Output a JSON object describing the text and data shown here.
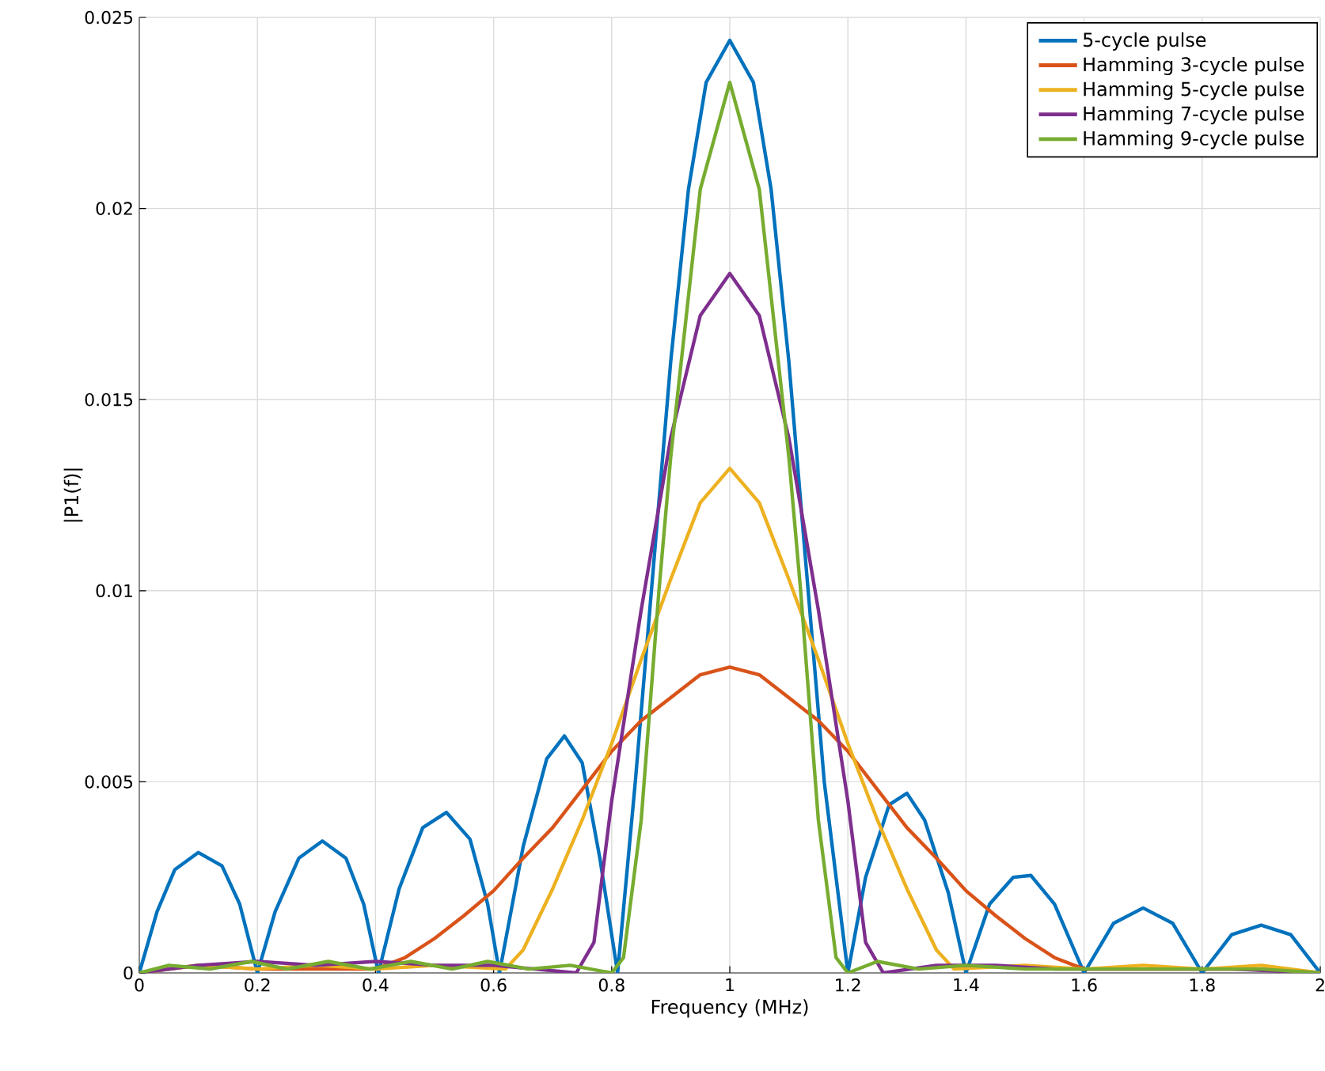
{
  "chart_data": {
    "type": "line",
    "xlabel": "Frequency (MHz)",
    "ylabel": "|P1(f)|",
    "xlim": [
      0,
      2
    ],
    "ylim": [
      0,
      0.025
    ],
    "xticks": [
      0,
      0.2,
      0.4,
      0.6,
      0.8,
      1,
      1.2,
      1.4,
      1.6,
      1.8,
      2
    ],
    "yticks": [
      0,
      0.005,
      0.01,
      0.015,
      0.02,
      0.025
    ],
    "grid": true,
    "legend": "top right",
    "marker": "none",
    "line_style": "solid",
    "series": [
      {
        "name": "5-cycle pulse",
        "color": "#0072bd",
        "x": [
          0,
          0.03,
          0.06,
          0.1,
          0.14,
          0.17,
          0.2,
          0.23,
          0.27,
          0.31,
          0.35,
          0.38,
          0.405,
          0.44,
          0.48,
          0.52,
          0.56,
          0.59,
          0.61,
          0.65,
          0.69,
          0.72,
          0.75,
          0.78,
          0.81,
          0.84,
          0.87,
          0.9,
          0.93,
          0.96,
          1,
          1.04,
          1.07,
          1.1,
          1.13,
          1.16,
          1.2,
          1.23,
          1.27,
          1.3,
          1.33,
          1.37,
          1.4,
          1.44,
          1.48,
          1.51,
          1.55,
          1.6,
          1.65,
          1.7,
          1.75,
          1.8,
          1.85,
          1.9,
          1.95,
          2
        ],
        "values": [
          0,
          0.0016,
          0.0027,
          0.00315,
          0.0028,
          0.0018,
          0,
          0.0016,
          0.003,
          0.00345,
          0.003,
          0.0018,
          0,
          0.0022,
          0.0038,
          0.0042,
          0.0035,
          0.0018,
          0,
          0.0033,
          0.0056,
          0.0062,
          0.0055,
          0.003,
          0,
          0.005,
          0.0105,
          0.016,
          0.0205,
          0.0233,
          0.0244,
          0.0233,
          0.0205,
          0.016,
          0.0105,
          0.005,
          0,
          0.0025,
          0.0044,
          0.0047,
          0.004,
          0.0021,
          0,
          0.0018,
          0.0025,
          0.00255,
          0.0018,
          0,
          0.0013,
          0.0017,
          0.0013,
          0,
          0.001,
          0.00125,
          0.001,
          0
        ]
      },
      {
        "name": "Hamming 3-cycle pulse",
        "color": "#d95319",
        "x": [
          0,
          0.1,
          0.2,
          0.3,
          0.4,
          0.45,
          0.5,
          0.55,
          0.6,
          0.65,
          0.7,
          0.75,
          0.8,
          0.85,
          0.9,
          0.95,
          1,
          1.05,
          1.1,
          1.15,
          1.2,
          1.25,
          1.3,
          1.35,
          1.4,
          1.45,
          1.5,
          1.55,
          1.6,
          1.7,
          1.8,
          1.9,
          2
        ],
        "values": [
          0,
          0.0002,
          0.0001,
          0.0001,
          0.0001,
          0.0004,
          0.0009,
          0.0015,
          0.00215,
          0.003,
          0.0038,
          0.0048,
          0.0058,
          0.0066,
          0.0072,
          0.0078,
          0.008,
          0.0078,
          0.0072,
          0.0066,
          0.0058,
          0.0048,
          0.0038,
          0.003,
          0.00215,
          0.0015,
          0.0009,
          0.0004,
          0.0001,
          0.0001,
          0.0001,
          0.0001,
          0
        ]
      },
      {
        "name": "Hamming 5-cycle pulse",
        "color": "#edb120",
        "x": [
          0,
          0.1,
          0.2,
          0.3,
          0.4,
          0.5,
          0.62,
          0.65,
          0.7,
          0.75,
          0.8,
          0.85,
          0.9,
          0.95,
          1,
          1.05,
          1.1,
          1.15,
          1.2,
          1.25,
          1.3,
          1.35,
          1.38,
          1.5,
          1.6,
          1.7,
          1.8,
          1.9,
          2
        ],
        "values": [
          0,
          0.0002,
          0.0001,
          0.0002,
          0.0001,
          0.0002,
          0.0001,
          0.0006,
          0.0022,
          0.004,
          0.006,
          0.0082,
          0.0103,
          0.0123,
          0.0132,
          0.0123,
          0.0103,
          0.0082,
          0.006,
          0.004,
          0.0022,
          0.0006,
          0.0001,
          0.0002,
          0.0001,
          0.0002,
          0.0001,
          0.0002,
          0
        ]
      },
      {
        "name": "Hamming 7-cycle pulse",
        "color": "#7e2f8e",
        "x": [
          0,
          0.1,
          0.2,
          0.3,
          0.4,
          0.5,
          0.6,
          0.74,
          0.77,
          0.8,
          0.85,
          0.9,
          0.95,
          1,
          1.05,
          1.1,
          1.15,
          1.2,
          1.23,
          1.26,
          1.35,
          1.45,
          1.55,
          1.7,
          1.85,
          2
        ],
        "values": [
          0,
          0.0002,
          0.0003,
          0.0002,
          0.0003,
          0.0002,
          0.0002,
          0,
          0.0008,
          0.0045,
          0.0095,
          0.014,
          0.0172,
          0.0183,
          0.0172,
          0.014,
          0.0095,
          0.0045,
          0.0008,
          0,
          0.0002,
          0.0002,
          0.0001,
          0.0001,
          0.0001,
          0
        ]
      },
      {
        "name": "Hamming 9-cycle pulse",
        "color": "#77ac30",
        "x": [
          0,
          0.05,
          0.12,
          0.19,
          0.25,
          0.32,
          0.39,
          0.46,
          0.53,
          0.59,
          0.66,
          0.73,
          0.8,
          0.82,
          0.85,
          0.88,
          0.9,
          0.95,
          1,
          1.05,
          1.1,
          1.12,
          1.15,
          1.18,
          1.2,
          1.25,
          1.32,
          1.4,
          1.5,
          1.6,
          1.7,
          1.8,
          1.9,
          2
        ],
        "values": [
          0,
          0.0002,
          0.0001,
          0.0003,
          0.0001,
          0.0003,
          0.0001,
          0.0003,
          0.0001,
          0.0003,
          0.0001,
          0.0002,
          0,
          0.0004,
          0.004,
          0.01,
          0.0135,
          0.0205,
          0.0233,
          0.0205,
          0.0135,
          0.01,
          0.004,
          0.0004,
          0,
          0.0003,
          0.0001,
          0.0002,
          0.0001,
          0.0001,
          0.0001,
          0.0001,
          0.0001,
          0
        ]
      }
    ]
  }
}
